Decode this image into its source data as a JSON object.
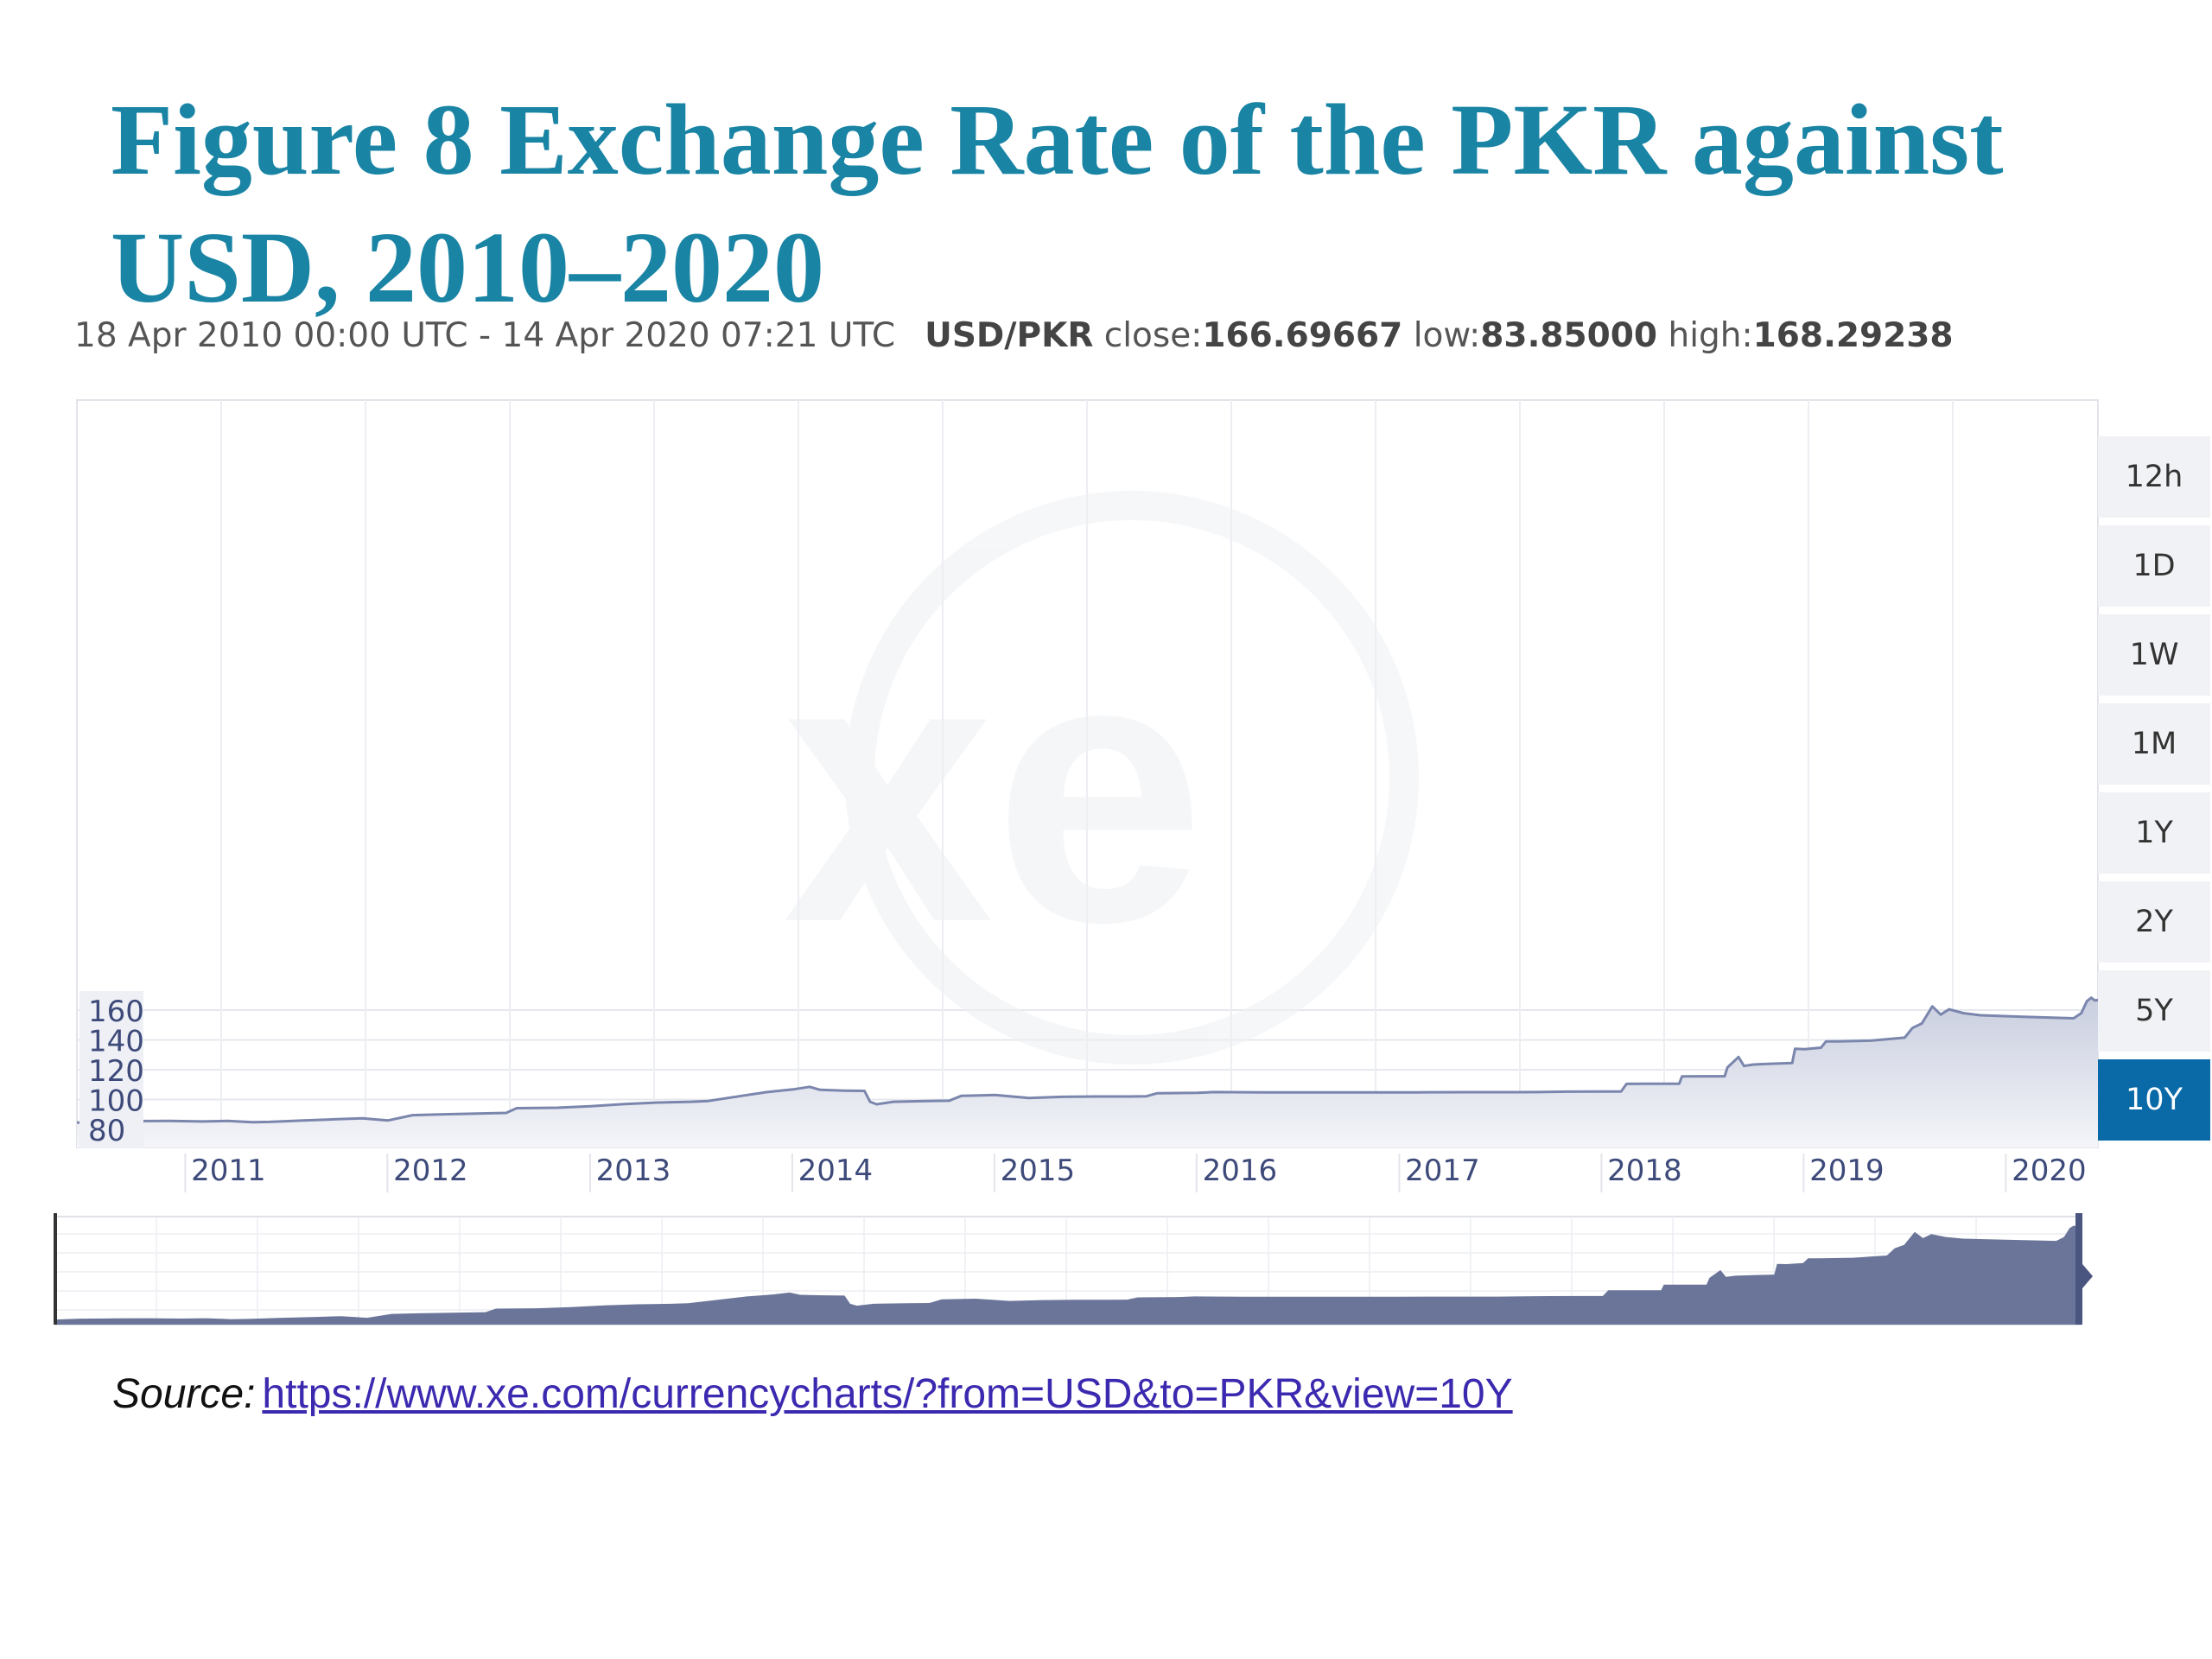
{
  "title": "Figure 8 Exchange Rate of the PKR against USD, 2010–2020",
  "range_text": "18 Apr 2010 00:00 UTC - 14 Apr 2020 07:21 UTC",
  "pair": "USD/PKR",
  "stats": {
    "close_label": "close:",
    "close": "166.69667",
    "low_label": "low:",
    "low": "83.85000",
    "high_label": "high:",
    "high": "168.29238"
  },
  "range_buttons": [
    {
      "label": "12h",
      "active": false
    },
    {
      "label": "1D",
      "active": false
    },
    {
      "label": "1W",
      "active": false
    },
    {
      "label": "1M",
      "active": false
    },
    {
      "label": "1Y",
      "active": false
    },
    {
      "label": "2Y",
      "active": false
    },
    {
      "label": "5Y",
      "active": false
    },
    {
      "label": "10Y",
      "active": true
    }
  ],
  "source": {
    "label": "Source:",
    "link_text": "https://www.xe.com/currencycharts/?from=USD&to=PKR&view=10Y"
  },
  "colors": {
    "title": "#1a84a4",
    "line": "#7b86ad",
    "area_top": "#cfd3e1",
    "navigator_fill": "#6a7599",
    "active_button": "#0a6aa8"
  },
  "chart_data": {
    "type": "area",
    "title": "",
    "xlabel": "",
    "ylabel": "",
    "xlim": [
      "2010-04-18",
      "2020-04-14"
    ],
    "ylim": [
      80,
      180
    ],
    "y_ticks": [
      80,
      100,
      120,
      140,
      160
    ],
    "x_ticks": [
      "2011",
      "2012",
      "2013",
      "2014",
      "2015",
      "2016",
      "2017",
      "2018",
      "2019",
      "2020"
    ],
    "grid": true,
    "series": [
      {
        "values": [
          [
            "2010-04-18",
            84.5
          ],
          [
            "2010-06-01",
            85.2
          ],
          [
            "2010-08-01",
            85.5
          ],
          [
            "2010-10-01",
            85.6
          ],
          [
            "2010-12-01",
            85.3
          ],
          [
            "2011-01-15",
            85.6
          ],
          [
            "2011-03-01",
            84.8
          ],
          [
            "2011-04-01",
            85.0
          ],
          [
            "2011-06-01",
            86.0
          ],
          [
            "2011-08-01",
            86.8
          ],
          [
            "2011-09-15",
            87.4
          ],
          [
            "2011-11-01",
            86.0
          ],
          [
            "2011-12-15",
            89.5
          ],
          [
            "2012-02-01",
            90.0
          ],
          [
            "2012-04-01",
            90.5
          ],
          [
            "2012-06-01",
            91.0
          ],
          [
            "2012-06-20",
            94.2
          ],
          [
            "2012-09-01",
            94.5
          ],
          [
            "2012-11-01",
            95.5
          ],
          [
            "2013-01-01",
            97.0
          ],
          [
            "2013-03-01",
            98.0
          ],
          [
            "2013-05-01",
            98.5
          ],
          [
            "2013-06-01",
            99.0
          ],
          [
            "2013-08-01",
            102.5
          ],
          [
            "2013-09-15",
            105.0
          ],
          [
            "2013-11-01",
            106.8
          ],
          [
            "2013-12-01",
            108.5
          ],
          [
            "2013-12-20",
            106.5
          ],
          [
            "2014-02-01",
            106.0
          ],
          [
            "2014-03-10",
            105.8
          ],
          [
            "2014-03-20",
            98.5
          ],
          [
            "2014-04-01",
            96.8
          ],
          [
            "2014-05-01",
            98.5
          ],
          [
            "2014-07-01",
            99.0
          ],
          [
            "2014-08-10",
            99.2
          ],
          [
            "2014-09-01",
            102.5
          ],
          [
            "2014-11-01",
            103.0
          ],
          [
            "2015-01-01",
            101.0
          ],
          [
            "2015-03-01",
            101.8
          ],
          [
            "2015-05-01",
            102.0
          ],
          [
            "2015-07-01",
            102.0
          ],
          [
            "2015-08-01",
            102.2
          ],
          [
            "2015-08-20",
            104.2
          ],
          [
            "2015-11-01",
            104.5
          ],
          [
            "2015-12-01",
            105.0
          ],
          [
            "2016-03-01",
            104.8
          ],
          [
            "2016-06-01",
            104.8
          ],
          [
            "2016-09-01",
            104.8
          ],
          [
            "2016-12-01",
            104.8
          ],
          [
            "2017-03-01",
            104.9
          ],
          [
            "2017-06-01",
            104.9
          ],
          [
            "2017-07-01",
            105.0
          ],
          [
            "2017-09-01",
            105.3
          ],
          [
            "2017-11-01",
            105.4
          ],
          [
            "2017-12-05",
            105.4
          ],
          [
            "2017-12-15",
            110.5
          ],
          [
            "2018-02-01",
            110.6
          ],
          [
            "2018-03-20",
            110.6
          ],
          [
            "2018-03-25",
            115.5
          ],
          [
            "2018-05-01",
            115.6
          ],
          [
            "2018-06-10",
            115.6
          ],
          [
            "2018-06-15",
            121.5
          ],
          [
            "2018-07-05",
            128.5
          ],
          [
            "2018-07-15",
            122.5
          ],
          [
            "2018-08-01",
            123.5
          ],
          [
            "2018-09-01",
            124.0
          ],
          [
            "2018-10-10",
            124.5
          ],
          [
            "2018-10-15",
            134.0
          ],
          [
            "2018-11-01",
            133.8
          ],
          [
            "2018-12-01",
            134.8
          ],
          [
            "2018-12-10",
            139.0
          ],
          [
            "2019-01-01",
            139.0
          ],
          [
            "2019-03-01",
            139.5
          ],
          [
            "2019-05-01",
            141.5
          ],
          [
            "2019-05-15",
            148.0
          ],
          [
            "2019-06-01",
            151.0
          ],
          [
            "2019-06-20",
            162.5
          ],
          [
            "2019-07-05",
            157.0
          ],
          [
            "2019-07-20",
            160.5
          ],
          [
            "2019-08-15",
            158.0
          ],
          [
            "2019-09-15",
            156.5
          ],
          [
            "2019-12-01",
            155.5
          ],
          [
            "2020-03-01",
            154.5
          ],
          [
            "2020-03-15",
            158.0
          ],
          [
            "2020-03-25",
            166.0
          ],
          [
            "2020-04-02",
            168.3
          ],
          [
            "2020-04-08",
            166.5
          ],
          [
            "2020-04-14",
            166.7
          ]
        ]
      }
    ]
  }
}
